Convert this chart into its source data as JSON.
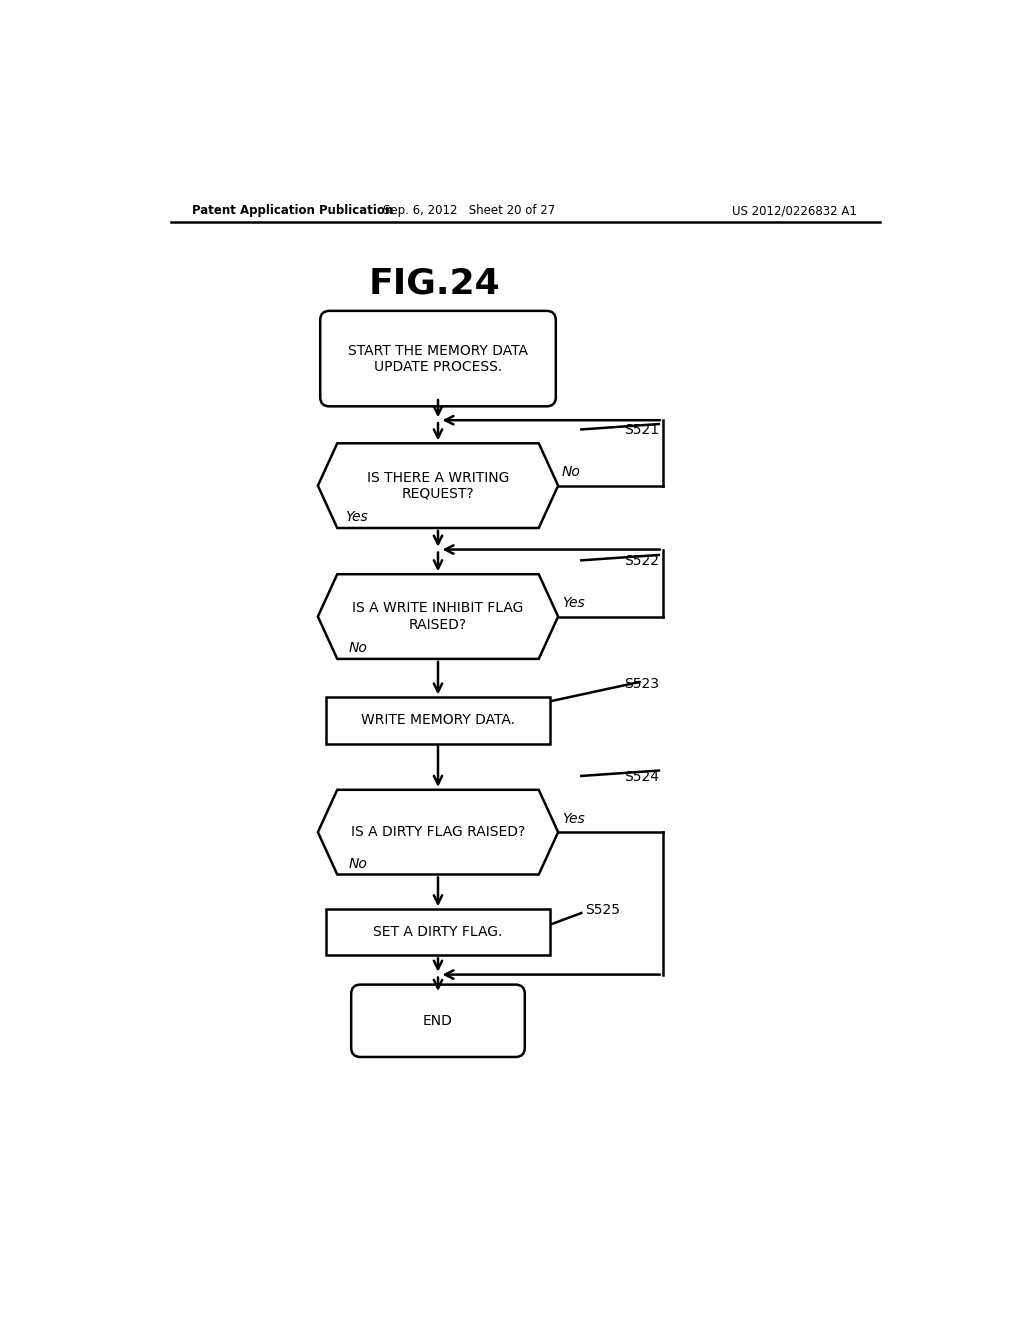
{
  "title": "FIG.24",
  "header_left": "Patent Application Publication",
  "header_center": "Sep. 6, 2012   Sheet 20 of 27",
  "header_right": "US 2012/0226832 A1",
  "background_color": "#ffffff",
  "line_color": "#000000",
  "text_color": "#000000",
  "fig_width": 10.24,
  "fig_height": 13.2,
  "dpi": 100
}
